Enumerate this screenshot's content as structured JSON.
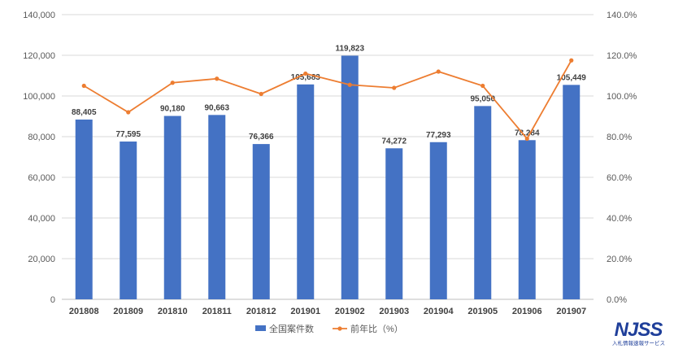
{
  "chart_data": {
    "type": "bar",
    "categories": [
      "201808",
      "201809",
      "201810",
      "201811",
      "201812",
      "201901",
      "201902",
      "201903",
      "201904",
      "201905",
      "201906",
      "201907"
    ],
    "series": [
      {
        "name": "全国案件数",
        "type": "bar",
        "axis": "left",
        "color": "#4472c4",
        "values": [
          88405,
          77595,
          90180,
          90663,
          76366,
          105683,
          119823,
          74272,
          77293,
          95050,
          78284,
          105449
        ],
        "labels": [
          "88,405",
          "77,595",
          "90,180",
          "90,663",
          "76,366",
          "105,683",
          "119,823",
          "74,272",
          "77,293",
          "95,050",
          "78,284",
          "105,449"
        ]
      },
      {
        "name": "前年比（%）",
        "type": "line",
        "axis": "right",
        "color": "#ed7d31",
        "values": [
          105.0,
          92.0,
          106.5,
          108.5,
          101.0,
          111.0,
          105.5,
          104.0,
          112.0,
          105.0,
          79.0,
          117.5
        ]
      }
    ],
    "y_left": {
      "min": 0,
      "max": 140000,
      "step": 20000,
      "ticks": [
        "0",
        "20,000",
        "40,000",
        "60,000",
        "80,000",
        "100,000",
        "120,000",
        "140,000"
      ]
    },
    "y_right": {
      "min": 0,
      "max": 140,
      "step": 20,
      "ticks": [
        "0.0%",
        "20.0%",
        "40.0%",
        "60.0%",
        "80.0%",
        "100.0%",
        "120.0%",
        "140.0%"
      ]
    },
    "grid": true,
    "legend_position": "bottom"
  },
  "logo": {
    "mark": "NJSS",
    "sub": "入札情報速報サービス"
  }
}
